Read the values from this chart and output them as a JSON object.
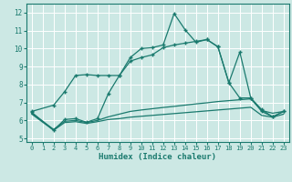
{
  "xlabel": "Humidex (Indice chaleur)",
  "xlim": [
    -0.5,
    23.5
  ],
  "ylim": [
    4.8,
    12.5
  ],
  "yticks": [
    5,
    6,
    7,
    8,
    9,
    10,
    11,
    12
  ],
  "xticks": [
    0,
    1,
    2,
    3,
    4,
    5,
    6,
    7,
    8,
    9,
    10,
    11,
    12,
    13,
    14,
    15,
    16,
    17,
    18,
    19,
    20,
    21,
    22,
    23
  ],
  "bg_color": "#cce8e4",
  "line_color": "#1a7a6e",
  "grid_color": "#ffffff",
  "series": [
    {
      "x": [
        0,
        2,
        3,
        4,
        5,
        6,
        7,
        8,
        9,
        10,
        11,
        12,
        13,
        14,
        15,
        16,
        17,
        18,
        19,
        20,
        21,
        22,
        23
      ],
      "y": [
        6.5,
        6.85,
        7.6,
        8.5,
        8.55,
        8.5,
        8.5,
        8.5,
        9.5,
        10.0,
        10.05,
        10.2,
        11.95,
        11.05,
        10.35,
        10.5,
        10.1,
        8.1,
        9.8,
        7.25,
        6.6,
        6.2,
        6.5
      ],
      "has_marker": true
    },
    {
      "x": [
        0,
        2,
        3,
        4,
        5,
        6,
        7,
        8,
        9,
        10,
        11,
        12,
        13,
        14,
        15,
        16,
        17,
        18,
        19,
        20,
        21,
        22,
        23
      ],
      "y": [
        6.45,
        5.45,
        6.05,
        6.1,
        5.9,
        6.1,
        7.5,
        8.5,
        9.3,
        9.5,
        9.65,
        10.05,
        10.2,
        10.3,
        10.4,
        10.5,
        10.1,
        8.1,
        7.25,
        7.25,
        6.5,
        6.2,
        6.5
      ],
      "has_marker": true
    },
    {
      "x": [
        0,
        2,
        3,
        4,
        5,
        6,
        7,
        8,
        9,
        10,
        11,
        12,
        13,
        14,
        15,
        16,
        17,
        18,
        19,
        20,
        21,
        22,
        23
      ],
      "y": [
        6.4,
        5.5,
        5.95,
        6.0,
        5.88,
        6.0,
        6.2,
        6.35,
        6.5,
        6.58,
        6.65,
        6.72,
        6.78,
        6.85,
        6.92,
        6.98,
        7.05,
        7.1,
        7.15,
        7.2,
        6.55,
        6.4,
        6.5
      ],
      "has_marker": false
    },
    {
      "x": [
        0,
        2,
        3,
        4,
        5,
        6,
        7,
        8,
        9,
        10,
        11,
        12,
        13,
        14,
        15,
        16,
        17,
        18,
        19,
        20,
        21,
        22,
        23
      ],
      "y": [
        6.35,
        5.45,
        5.88,
        5.93,
        5.83,
        5.93,
        6.05,
        6.1,
        6.18,
        6.23,
        6.28,
        6.33,
        6.38,
        6.43,
        6.48,
        6.53,
        6.58,
        6.63,
        6.68,
        6.73,
        6.28,
        6.18,
        6.35
      ],
      "has_marker": false
    }
  ]
}
